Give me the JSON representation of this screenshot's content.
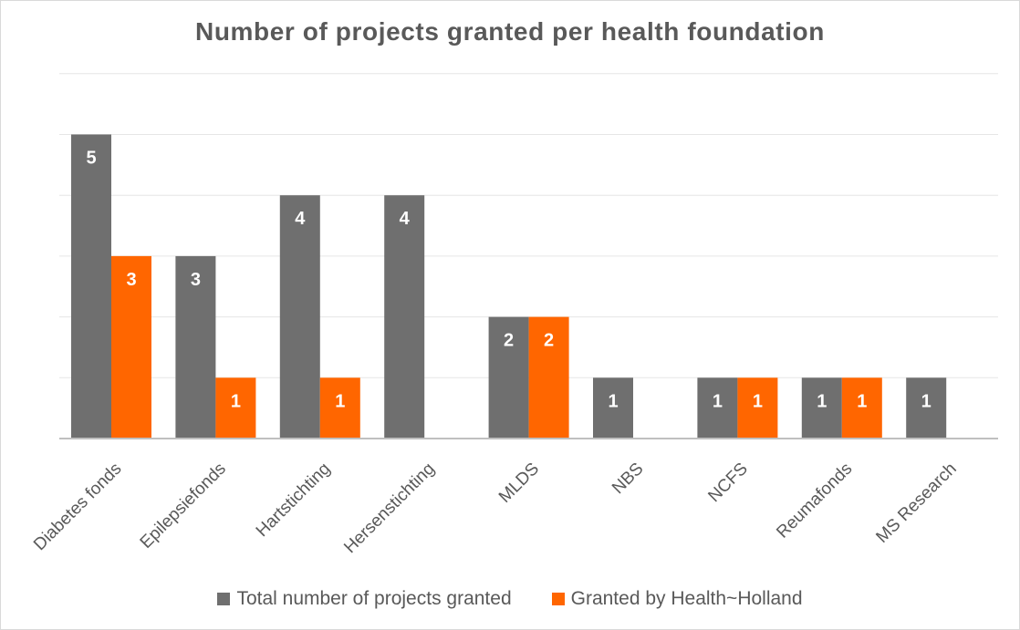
{
  "chart_data": {
    "type": "bar",
    "title": "Number of projects granted per health foundation",
    "categories": [
      "Diabetes fonds",
      "Epilepsiefonds",
      "Hartstichting",
      "Hersenstichting",
      "MLDS",
      "NBS",
      "NCFS",
      "Reumafonds",
      "MS Research"
    ],
    "series": [
      {
        "name": "Total number of projects granted",
        "color": "#6f6f6f",
        "values": [
          5,
          3,
          4,
          4,
          2,
          1,
          1,
          1,
          1
        ],
        "labels": [
          "5",
          "3",
          "4",
          "4",
          "2",
          "1",
          "1",
          "1",
          "1"
        ]
      },
      {
        "name": "Granted by Health~Holland",
        "color": "#ff6600",
        "values": [
          3,
          1,
          1,
          null,
          2,
          null,
          1,
          1,
          null
        ],
        "labels": [
          "3",
          "1",
          "1",
          "",
          "2",
          "",
          "1",
          "1",
          ""
        ]
      }
    ],
    "ylim": [
      0,
      6
    ],
    "gridlines": true,
    "legend_position": "bottom",
    "xlabel": "",
    "ylabel": ""
  }
}
